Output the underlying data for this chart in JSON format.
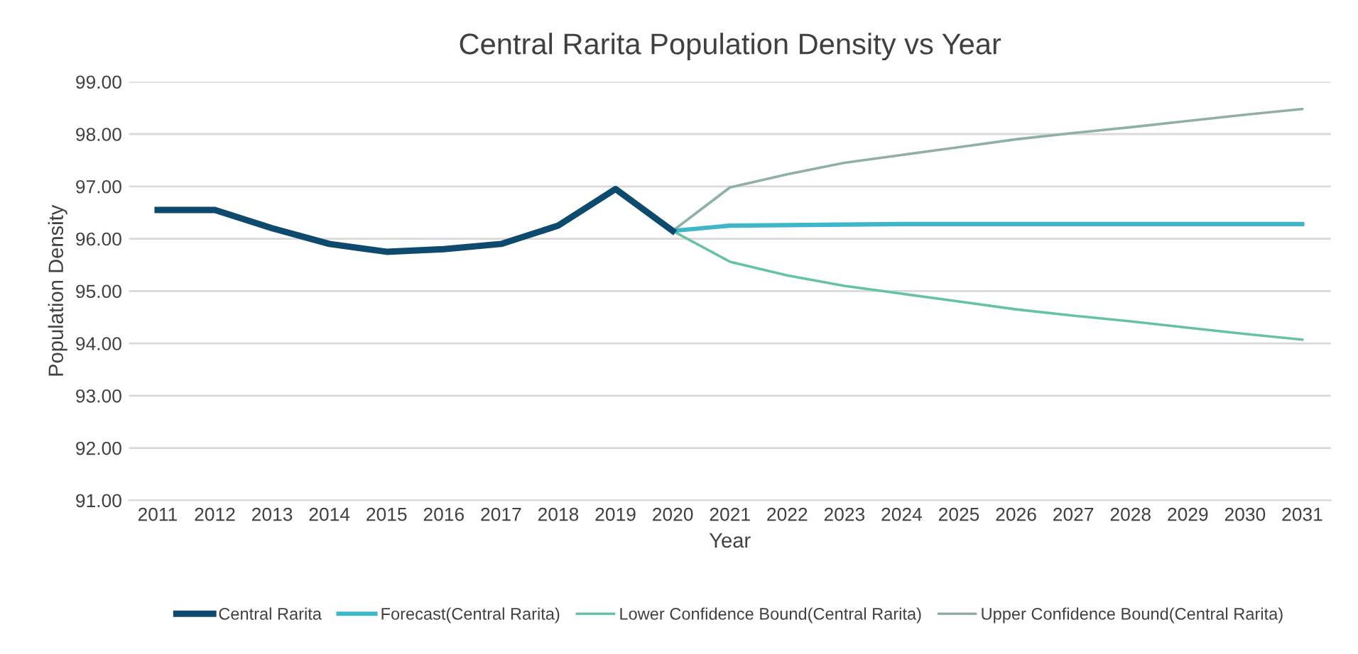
{
  "chart_data": {
    "type": "line",
    "title": "Central Rarita Population Density vs Year",
    "xlabel": "Year",
    "ylabel": "Population Density",
    "categories": [
      "2011",
      "2012",
      "2013",
      "2014",
      "2015",
      "2016",
      "2017",
      "2018",
      "2019",
      "2020",
      "2021",
      "2022",
      "2023",
      "2024",
      "2025",
      "2026",
      "2027",
      "2028",
      "2029",
      "2030",
      "2031"
    ],
    "series": [
      {
        "name": "Central Rarita",
        "color": "#0e4a6e",
        "values": [
          96.55,
          96.55,
          96.2,
          95.9,
          95.75,
          95.8,
          95.9,
          96.25,
          96.95,
          96.15,
          null,
          null,
          null,
          null,
          null,
          null,
          null,
          null,
          null,
          null,
          null
        ]
      },
      {
        "name": "Forecast(Central Rarita)",
        "color": "#3fb6c9",
        "values": [
          null,
          null,
          null,
          null,
          null,
          null,
          null,
          null,
          null,
          96.15,
          96.25,
          96.26,
          96.27,
          96.28,
          96.28,
          96.28,
          96.28,
          96.28,
          96.28,
          96.28,
          96.28
        ]
      },
      {
        "name": "Lower Confidence Bound(Central Rarita)",
        "color": "#66c2a5",
        "values": [
          null,
          null,
          null,
          null,
          null,
          null,
          null,
          null,
          null,
          96.15,
          95.56,
          95.3,
          95.1,
          94.95,
          94.8,
          94.65,
          94.53,
          94.42,
          94.3,
          94.18,
          94.07
        ]
      },
      {
        "name": "Upper Confidence Bound(Central Rarita)",
        "color": "#8fb0a5",
        "values": [
          null,
          null,
          null,
          null,
          null,
          null,
          null,
          null,
          null,
          96.15,
          96.98,
          97.23,
          97.45,
          97.6,
          97.75,
          97.9,
          98.02,
          98.13,
          98.25,
          98.37,
          98.48
        ]
      }
    ],
    "ylim": [
      91,
      99
    ],
    "yticks": [
      {
        "value": 91,
        "label": "91.00"
      },
      {
        "value": 92,
        "label": "92.00"
      },
      {
        "value": 93,
        "label": "93.00"
      },
      {
        "value": 94,
        "label": "94.00"
      },
      {
        "value": 95,
        "label": "95.00"
      },
      {
        "value": 96,
        "label": "96.00"
      },
      {
        "value": 97,
        "label": "97.00"
      },
      {
        "value": 98,
        "label": "98.00"
      },
      {
        "value": 99,
        "label": "99.00"
      }
    ],
    "grid": "y",
    "legend": "bottom",
    "marker": "none",
    "line_style": "solid"
  }
}
